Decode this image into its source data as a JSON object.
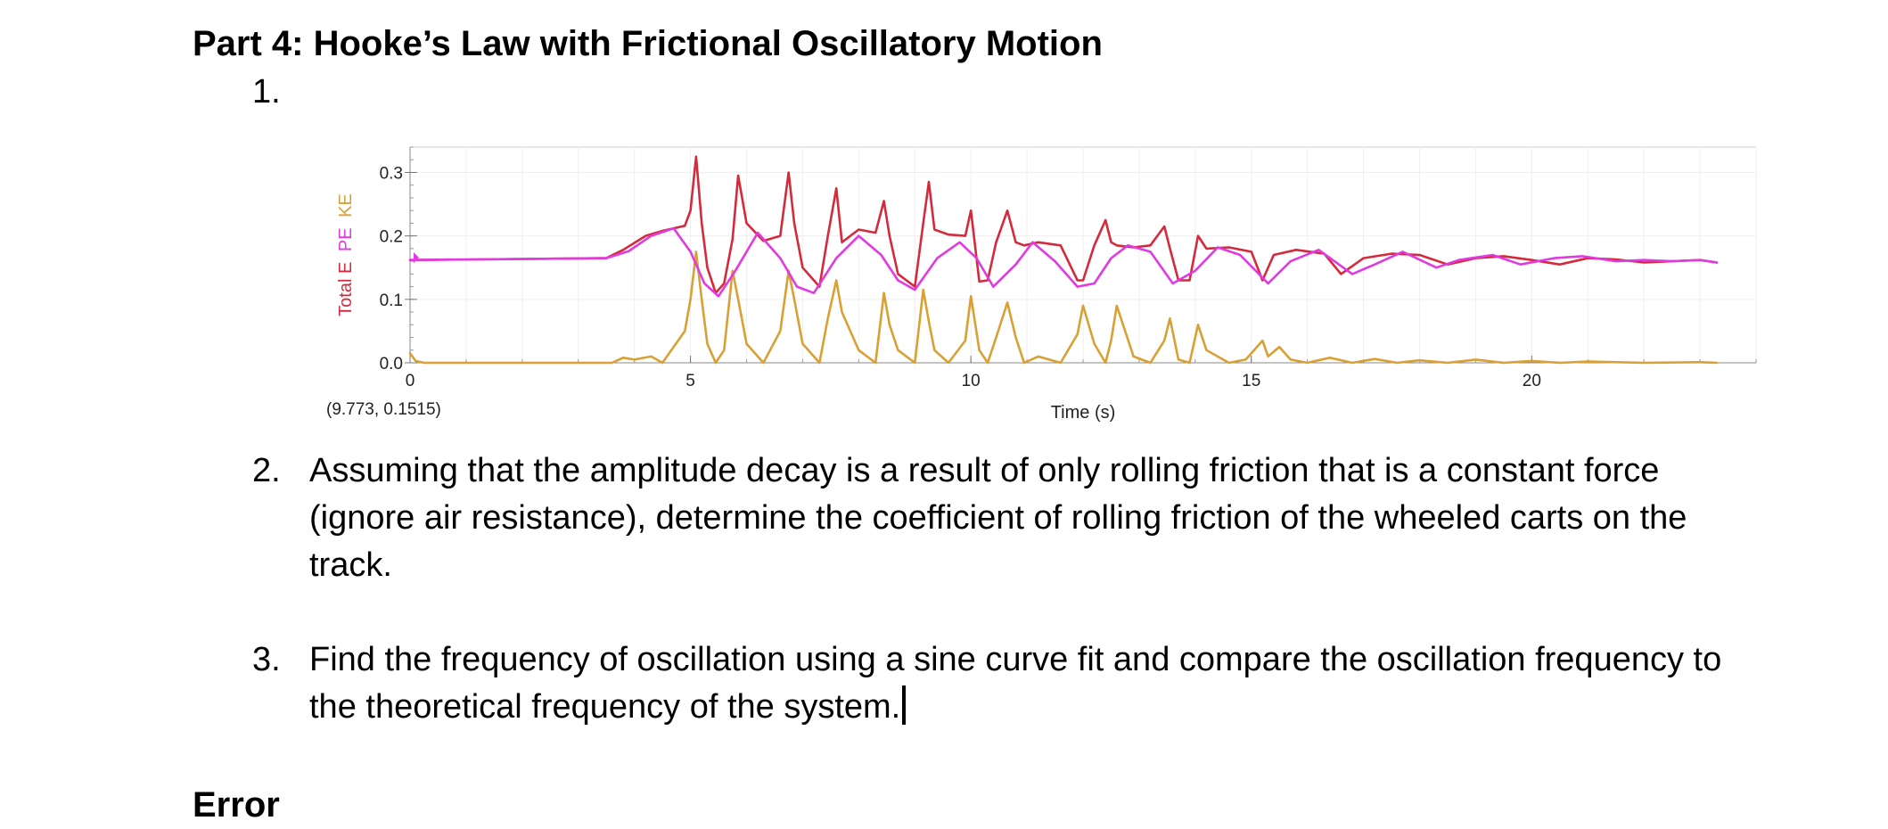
{
  "document": {
    "heading": "Part 4: Hooke’s Law with Frictional Oscillatory Motion",
    "item1_number": "1.",
    "item2_number": "2.",
    "item2_text": "Assuming that the amplitude decay is a result of only rolling friction that is a constant force (ignore air resistance), determine the coefficient of rolling friction of the wheeled carts on the track.",
    "item3_number": "3.",
    "item3_text": "Find the frequency of oscillation using a sine curve fit and compare the oscillation frequency to the theoretical frequency of the system.",
    "next_heading_partial": "Error"
  },
  "chart_data": {
    "type": "line",
    "xlabel": "Time (s)",
    "ylabel_parts": [
      {
        "text": "Total E",
        "color": "#d42a3c"
      },
      {
        "text": "PE",
        "color": "#e03ae0"
      },
      {
        "text": "KE",
        "color": "#d9a033"
      }
    ],
    "xlim": [
      0,
      24
    ],
    "ylim": [
      0,
      0.34
    ],
    "xticks": [
      0,
      5,
      10,
      15,
      20
    ],
    "yticks": [
      0.0,
      0.1,
      0.2,
      0.3
    ],
    "ytick_labels": [
      "0.0",
      "0.1",
      "0.2",
      "0.3"
    ],
    "cursor_readout": "(9.773, 0.1515)",
    "grid": true,
    "series": [
      {
        "name": "Total E",
        "color": "#d42a3c",
        "x": [
          0,
          3.5,
          3.8,
          4.2,
          4.5,
          4.9,
          5.0,
          5.1,
          5.2,
          5.3,
          5.45,
          5.6,
          5.75,
          5.85,
          6.0,
          6.3,
          6.6,
          6.75,
          6.85,
          7.0,
          7.3,
          7.45,
          7.6,
          7.7,
          8.0,
          8.3,
          8.45,
          8.55,
          8.7,
          9.0,
          9.15,
          9.25,
          9.35,
          9.6,
          9.9,
          10.0,
          10.15,
          10.3,
          10.45,
          10.65,
          10.8,
          10.95,
          11.2,
          11.6,
          11.9,
          12.0,
          12.2,
          12.4,
          12.5,
          12.6,
          12.9,
          13.2,
          13.45,
          13.55,
          13.7,
          13.9,
          14.05,
          14.2,
          14.6,
          15.0,
          15.2,
          15.4,
          15.8,
          16.3,
          16.6,
          17.0,
          17.5,
          18.0,
          18.5,
          19.0,
          19.5,
          20.0,
          20.5,
          21.0,
          21.5,
          22.0,
          22.5,
          23.0,
          23.3
        ],
        "y": [
          0.162,
          0.165,
          0.178,
          0.2,
          0.208,
          0.216,
          0.24,
          0.325,
          0.22,
          0.15,
          0.11,
          0.125,
          0.195,
          0.295,
          0.22,
          0.192,
          0.2,
          0.3,
          0.22,
          0.15,
          0.12,
          0.2,
          0.275,
          0.19,
          0.21,
          0.205,
          0.255,
          0.2,
          0.14,
          0.12,
          0.22,
          0.285,
          0.21,
          0.202,
          0.2,
          0.24,
          0.128,
          0.13,
          0.19,
          0.24,
          0.19,
          0.185,
          0.19,
          0.185,
          0.13,
          0.13,
          0.185,
          0.225,
          0.19,
          0.185,
          0.182,
          0.185,
          0.215,
          0.18,
          0.13,
          0.13,
          0.2,
          0.18,
          0.182,
          0.175,
          0.13,
          0.17,
          0.178,
          0.172,
          0.14,
          0.165,
          0.172,
          0.17,
          0.155,
          0.165,
          0.168,
          0.162,
          0.155,
          0.165,
          0.163,
          0.158,
          0.16,
          0.162,
          0.158
        ]
      },
      {
        "name": "PE",
        "color": "#e03ae0",
        "x": [
          0,
          3.5,
          3.9,
          4.3,
          4.7,
          5.0,
          5.25,
          5.5,
          5.8,
          6.2,
          6.6,
          6.9,
          7.2,
          7.6,
          8.0,
          8.4,
          8.7,
          9.0,
          9.4,
          9.8,
          10.1,
          10.4,
          10.8,
          11.1,
          11.5,
          11.9,
          12.2,
          12.5,
          12.8,
          13.2,
          13.6,
          14.0,
          14.4,
          14.8,
          15.3,
          15.7,
          16.2,
          16.8,
          17.2,
          17.7,
          18.3,
          18.7,
          19.3,
          19.8,
          20.4,
          20.9,
          21.5,
          22.0,
          22.5,
          23.0,
          23.3
        ],
        "y": [
          0.162,
          0.165,
          0.176,
          0.2,
          0.212,
          0.175,
          0.125,
          0.105,
          0.145,
          0.205,
          0.165,
          0.12,
          0.11,
          0.165,
          0.2,
          0.17,
          0.13,
          0.115,
          0.165,
          0.19,
          0.165,
          0.12,
          0.155,
          0.19,
          0.16,
          0.12,
          0.125,
          0.165,
          0.185,
          0.175,
          0.125,
          0.145,
          0.182,
          0.17,
          0.125,
          0.16,
          0.178,
          0.14,
          0.155,
          0.175,
          0.15,
          0.162,
          0.17,
          0.155,
          0.165,
          0.168,
          0.16,
          0.162,
          0.16,
          0.162,
          0.158
        ]
      },
      {
        "name": "KE",
        "color": "#d9a033",
        "x": [
          0,
          0.1,
          0.25,
          3.6,
          3.8,
          4.0,
          4.3,
          4.5,
          4.9,
          5.0,
          5.1,
          5.2,
          5.3,
          5.45,
          5.6,
          5.75,
          5.85,
          6.0,
          6.3,
          6.6,
          6.75,
          6.85,
          7.0,
          7.3,
          7.45,
          7.6,
          7.7,
          8.0,
          8.3,
          8.45,
          8.55,
          8.7,
          9.0,
          9.15,
          9.25,
          9.35,
          9.6,
          9.9,
          10.0,
          10.15,
          10.3,
          10.45,
          10.65,
          10.8,
          10.95,
          11.2,
          11.6,
          11.9,
          12.0,
          12.2,
          12.4,
          12.5,
          12.6,
          12.9,
          13.2,
          13.45,
          13.55,
          13.7,
          13.9,
          14.05,
          14.2,
          14.6,
          14.9,
          15.2,
          15.3,
          15.5,
          15.7,
          16.0,
          16.4,
          16.8,
          17.2,
          17.6,
          18.0,
          18.5,
          19.0,
          19.5,
          20.0,
          20.5,
          21.0,
          22.0,
          23.0,
          23.3
        ],
        "y": [
          0.015,
          0.003,
          0.0,
          0.0,
          0.008,
          0.005,
          0.01,
          0.0,
          0.05,
          0.1,
          0.175,
          0.1,
          0.03,
          0.0,
          0.02,
          0.145,
          0.1,
          0.03,
          0.0,
          0.05,
          0.145,
          0.1,
          0.03,
          0.0,
          0.07,
          0.13,
          0.08,
          0.02,
          0.0,
          0.11,
          0.06,
          0.02,
          0.0,
          0.115,
          0.065,
          0.02,
          0.0,
          0.035,
          0.105,
          0.02,
          0.0,
          0.04,
          0.095,
          0.04,
          0.0,
          0.01,
          0.0,
          0.045,
          0.09,
          0.03,
          0.0,
          0.035,
          0.09,
          0.01,
          0.0,
          0.035,
          0.07,
          0.005,
          0.0,
          0.06,
          0.02,
          0.0,
          0.005,
          0.035,
          0.01,
          0.025,
          0.005,
          0.0,
          0.008,
          0.0,
          0.006,
          0.0,
          0.004,
          0.0,
          0.005,
          0.0,
          0.003,
          0.0,
          0.002,
          0.0,
          0.001,
          0.0
        ]
      }
    ]
  }
}
